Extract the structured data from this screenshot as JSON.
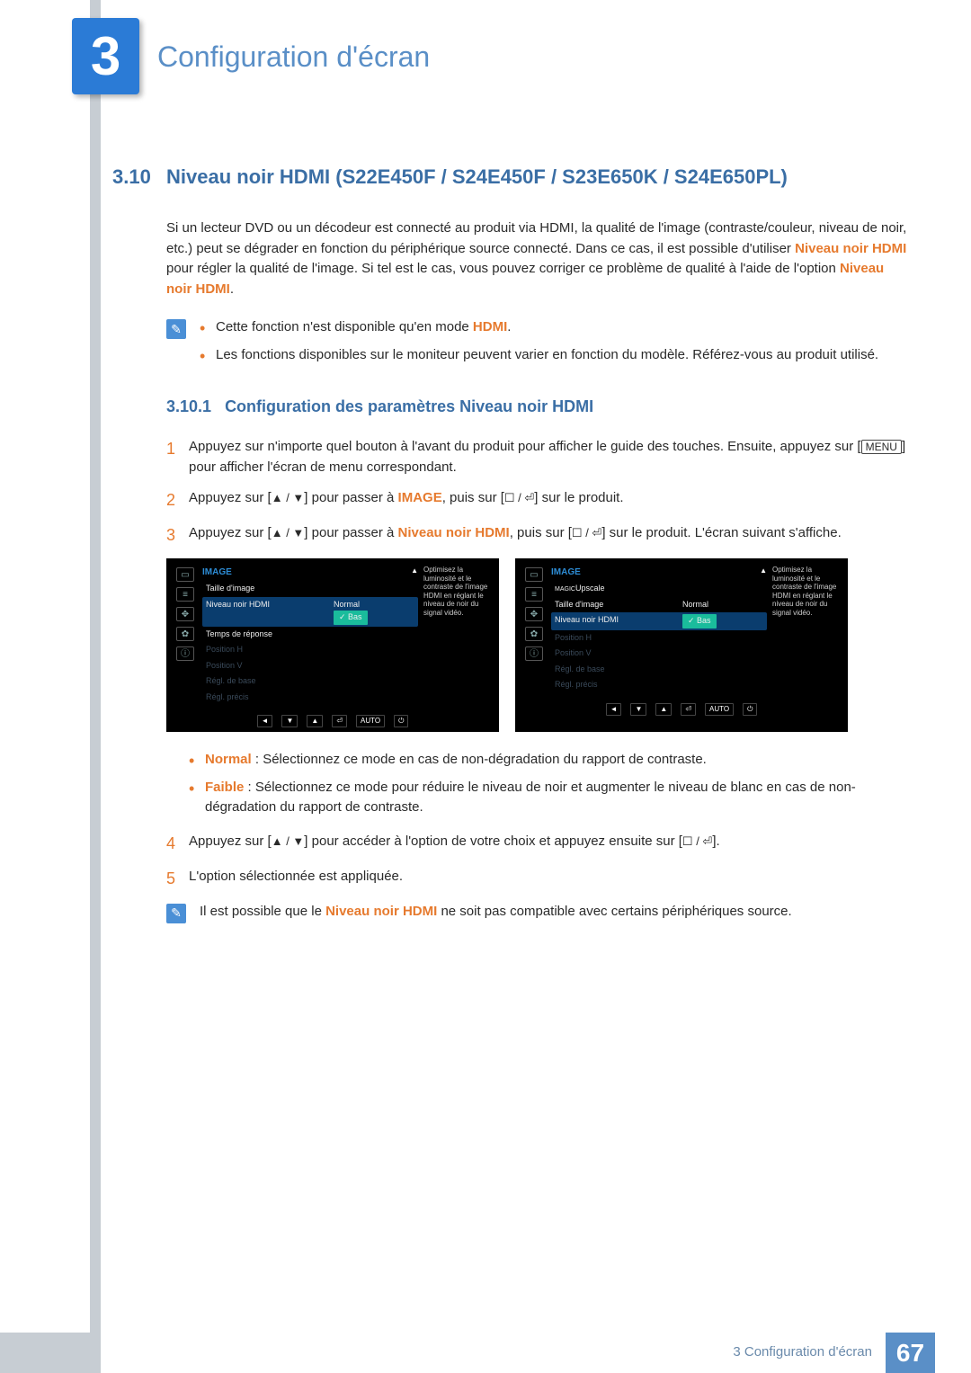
{
  "chapter": {
    "number": "3",
    "title": "Configuration d'écran"
  },
  "section": {
    "number": "3.10",
    "title": "Niveau noir HDMI (S22E450F / S24E450F / S23E650K / S24E650PL)"
  },
  "intro": {
    "p1a": "Si un lecteur DVD ou un décodeur est connecté au produit via HDMI, la qualité de l'image (contraste/couleur, niveau de noir, etc.) peut se dégrader en fonction du périphérique source connecté. Dans ce cas, il est possible d'utiliser ",
    "p1b": "Niveau noir HDMI",
    "p1c": " pour régler la qualité de l'image. Si tel est le cas, vous pouvez corriger ce problème de qualité à l'aide de l'option ",
    "p1d": "Niveau noir HDMI",
    "p1e": "."
  },
  "notes1": {
    "n1a": "Cette fonction n'est disponible qu'en mode ",
    "n1b": "HDMI",
    "n1c": ".",
    "n2": "Les fonctions disponibles sur le moniteur peuvent varier en fonction du modèle. Référez-vous au produit utilisé."
  },
  "subsection": {
    "number": "3.10.1",
    "title": "Configuration des paramètres Niveau noir HDMI"
  },
  "steps": {
    "s1": "Appuyez sur n'importe quel bouton à l'avant du produit pour afficher le guide des touches. Ensuite, appuyez sur [",
    "s1b": "] pour afficher l'écran de menu correspondant.",
    "s2a": "Appuyez sur [",
    "s2b": "] pour passer à ",
    "s2c": "IMAGE",
    "s2d": ", puis sur [",
    "s2e": "] sur le produit.",
    "s3a": "Appuyez sur [",
    "s3b": "] pour passer à ",
    "s3c": "Niveau noir HDMI",
    "s3d": ", puis sur [",
    "s3e": "] sur le produit. L'écran suivant s'affiche.",
    "s4a": "Appuyez sur [",
    "s4b": "] pour accéder à l'option de votre choix et appuyez ensuite sur [",
    "s4c": "].",
    "s5": "L'option sélectionnée est appliquée."
  },
  "menu_label": "MENU",
  "arrows": "▲ / ▼",
  "enter": "☐ / ⏎",
  "osd": {
    "title": "IMAGE",
    "desc": "Optimisez la luminosité et le contraste de l'image HDMI en réglant le niveau de noir du signal vidéo.",
    "left": {
      "items": [
        {
          "label": "Taille d'image",
          "val": "▲",
          "disabled": false
        },
        {
          "label": "Niveau noir HDMI",
          "val": "Normal",
          "highlight": true,
          "badge": "✓ Bas"
        },
        {
          "label": "Temps de réponse",
          "val": "",
          "disabled": false
        },
        {
          "label": "Position H",
          "val": "",
          "disabled": true
        },
        {
          "label": "Position V",
          "val": "",
          "disabled": true
        },
        {
          "label": "Régl. de base",
          "val": "",
          "disabled": true
        },
        {
          "label": "Régl. précis",
          "val": "",
          "disabled": true
        }
      ]
    },
    "right": {
      "items": [
        {
          "label": "ᔖᴬᴹˢᵁᴺᴳ Upscale",
          "val": "▲",
          "disabled": false,
          "magic": "MAGIC"
        },
        {
          "label": "Taille d'image",
          "val": "Normal",
          "disabled": false
        },
        {
          "label": "Niveau noir HDMI",
          "val": "",
          "highlight": true,
          "badge": "✓ Bas"
        },
        {
          "label": "Position H",
          "val": "",
          "disabled": true
        },
        {
          "label": "Position V",
          "val": "",
          "disabled": true
        },
        {
          "label": "Régl. de base",
          "val": "",
          "disabled": true
        },
        {
          "label": "Régl. précis",
          "val": "",
          "disabled": true
        }
      ]
    },
    "footer": [
      "◄",
      "▼",
      "▲",
      "⏎",
      "AUTO",
      "⏻"
    ],
    "side_icons": [
      "▭",
      "≡",
      "✥",
      "✿",
      "ⓘ"
    ]
  },
  "options": {
    "o1a": "Normal",
    "o1b": " : Sélectionnez ce mode en cas de non-dégradation du rapport de contraste.",
    "o2a": "Faible",
    "o2b": " : Sélectionnez ce mode pour réduire le niveau de noir et augmenter le niveau de blanc en cas de non-dégradation du rapport de contraste."
  },
  "note2": {
    "a": "Il est possible que le ",
    "b": "Niveau noir HDMI",
    "c": " ne soit pas compatible avec certains périphériques source."
  },
  "footer": {
    "text": "3 Configuration d'écran",
    "page": "67"
  },
  "colors": {
    "brand_blue": "#2b7bd6",
    "heading_blue": "#3a6ea5",
    "light_blue": "#5a8fc7",
    "stripe": "#c7cdd3",
    "orange": "#e67a2e",
    "osd_highlight": "#0a3d6e",
    "osd_badge": "#1abc9c"
  }
}
